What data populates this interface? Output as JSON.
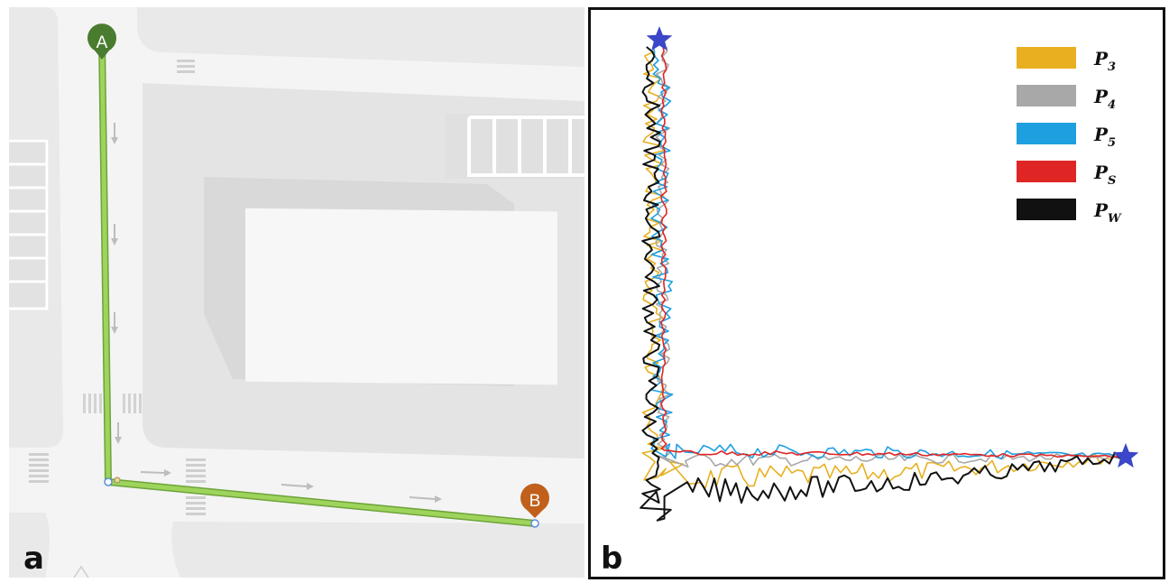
{
  "panel_a": {
    "panel_label": "a",
    "start_marker": {
      "label": "A",
      "color": "#4a7c2f"
    },
    "end_marker": {
      "label": "B",
      "color": "#c0601a"
    },
    "route_color": "#8bc34a"
  },
  "panel_b": {
    "panel_label": "b",
    "endpoint_color": "#3b46c9",
    "legend": [
      {
        "symbol": "P",
        "subscript": "3",
        "color": "#e8b020"
      },
      {
        "symbol": "P",
        "subscript": "4",
        "color": "#a8a8a8"
      },
      {
        "symbol": "P",
        "subscript": "5",
        "color": "#1e9fe0"
      },
      {
        "symbol": "P",
        "subscript": "S",
        "color": "#e02525"
      },
      {
        "symbol": "P",
        "subscript": "W",
        "color": "#111111"
      }
    ]
  }
}
